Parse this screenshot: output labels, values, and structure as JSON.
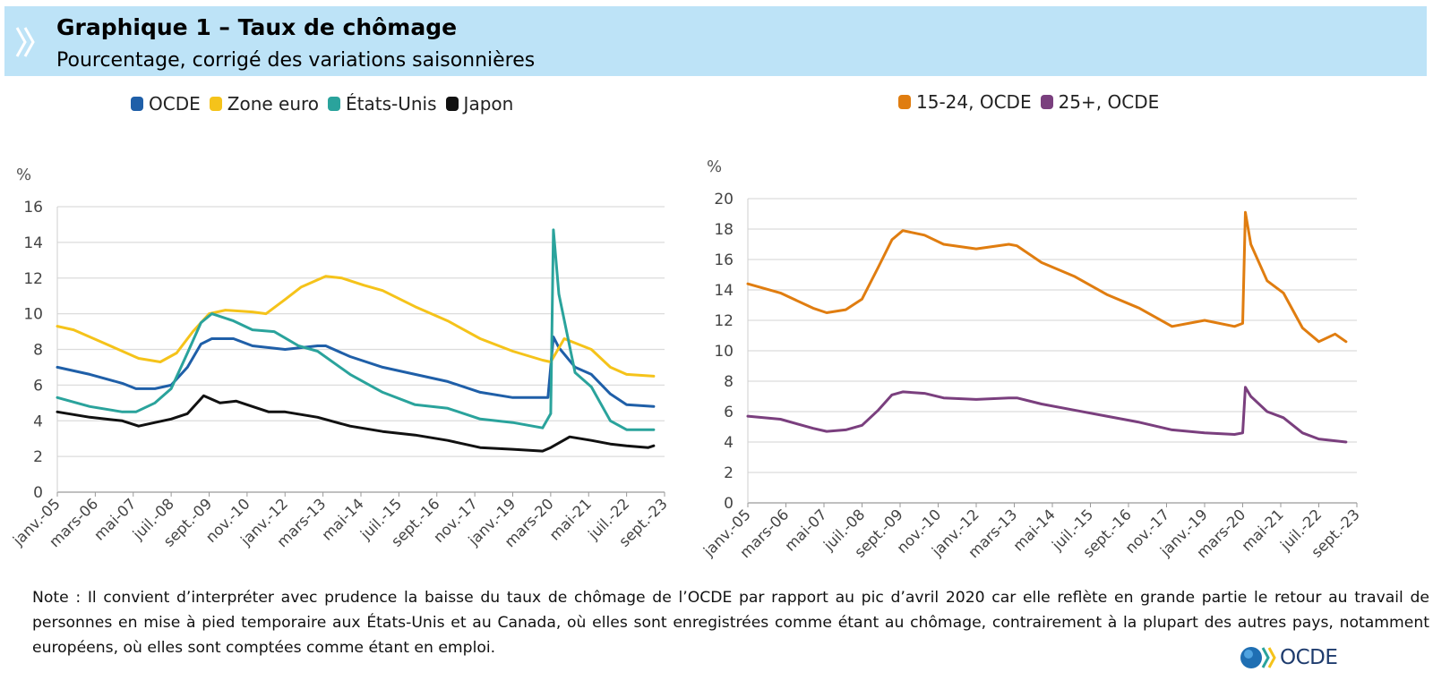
{
  "header": {
    "title": "Graphique 1 – Taux de chômage",
    "subtitle": "Pourcentage, corrigé des variations saisonnières"
  },
  "note": "Note : Il convient d’interpréter avec prudence la baisse du taux de chômage de l’OCDE par rapport au pic d’avril 2020 car elle reflète en grande partie le retour au travail de personnes en mise à pied temporaire aux États-Unis et au Canada, où elles sont enregistrées comme étant au chômage, contrairement à la plupart des autres pays, notamment européens, où elles sont comptées comme étant en emploi.",
  "logo": {
    "text": "OCDE"
  },
  "colors": {
    "oecd": "#1f5fa8",
    "euro": "#f5c31a",
    "us": "#2aa39c",
    "japan": "#111111",
    "youth": "#e07d10",
    "adult": "#7a3f7e",
    "grid": "#d9d9d9",
    "header_bg": "#bde3f7"
  },
  "chart_data": [
    {
      "type": "line",
      "ylabel": "%",
      "ylim": [
        0,
        16
      ],
      "yticks": [
        0,
        2,
        4,
        6,
        8,
        10,
        12,
        14,
        16
      ],
      "xlim": [
        "2005-01",
        "2023-09"
      ],
      "tick_labels": [
        "janv.-05",
        "mars-06",
        "mai-07",
        "juil.-08",
        "sept.-09",
        "nov.-10",
        "janv.-12",
        "mars-13",
        "mai-14",
        "juil.-15",
        "sept.-16",
        "nov.-17",
        "janv.-19",
        "mars-20",
        "mai-21",
        "juil.-22",
        "sept.-23"
      ],
      "tick_dates": [
        "2005-01",
        "2006-03",
        "2007-05",
        "2008-07",
        "2009-09",
        "2010-11",
        "2012-01",
        "2013-03",
        "2014-05",
        "2015-07",
        "2016-09",
        "2017-11",
        "2019-01",
        "2020-03",
        "2021-05",
        "2022-07",
        "2023-09"
      ],
      "grid": true,
      "legend_position": "top",
      "series": [
        {
          "name": "OCDE",
          "color": "#1f5fa8",
          "points": [
            [
              "2005-01",
              7.0
            ],
            [
              "2006-01",
              6.6
            ],
            [
              "2007-01",
              6.1
            ],
            [
              "2007-06",
              5.8
            ],
            [
              "2008-01",
              5.8
            ],
            [
              "2008-07",
              6.0
            ],
            [
              "2009-01",
              7.0
            ],
            [
              "2009-06",
              8.3
            ],
            [
              "2009-10",
              8.6
            ],
            [
              "2010-06",
              8.6
            ],
            [
              "2011-01",
              8.2
            ],
            [
              "2012-01",
              8.0
            ],
            [
              "2013-01",
              8.2
            ],
            [
              "2013-04",
              8.2
            ],
            [
              "2014-01",
              7.6
            ],
            [
              "2015-01",
              7.0
            ],
            [
              "2016-01",
              6.6
            ],
            [
              "2017-01",
              6.2
            ],
            [
              "2018-01",
              5.6
            ],
            [
              "2019-01",
              5.3
            ],
            [
              "2019-12",
              5.3
            ],
            [
              "2020-02",
              5.3
            ],
            [
              "2020-04",
              8.7
            ],
            [
              "2020-06",
              8.1
            ],
            [
              "2020-12",
              7.0
            ],
            [
              "2021-06",
              6.6
            ],
            [
              "2022-01",
              5.5
            ],
            [
              "2022-07",
              4.9
            ],
            [
              "2023-05",
              4.8
            ]
          ]
        },
        {
          "name": "Zone euro",
          "color": "#f5c31a",
          "points": [
            [
              "2005-01",
              9.3
            ],
            [
              "2005-07",
              9.1
            ],
            [
              "2006-07",
              8.3
            ],
            [
              "2007-07",
              7.5
            ],
            [
              "2008-03",
              7.3
            ],
            [
              "2008-09",
              7.8
            ],
            [
              "2009-03",
              9.0
            ],
            [
              "2009-09",
              10.0
            ],
            [
              "2010-03",
              10.2
            ],
            [
              "2011-01",
              10.1
            ],
            [
              "2011-06",
              10.0
            ],
            [
              "2012-01",
              10.8
            ],
            [
              "2012-07",
              11.5
            ],
            [
              "2013-04",
              12.1
            ],
            [
              "2013-10",
              12.0
            ],
            [
              "2014-06",
              11.6
            ],
            [
              "2015-01",
              11.3
            ],
            [
              "2016-01",
              10.4
            ],
            [
              "2017-01",
              9.6
            ],
            [
              "2018-01",
              8.6
            ],
            [
              "2019-01",
              7.9
            ],
            [
              "2019-12",
              7.4
            ],
            [
              "2020-03",
              7.3
            ],
            [
              "2020-08",
              8.6
            ],
            [
              "2021-01",
              8.3
            ],
            [
              "2021-06",
              8.0
            ],
            [
              "2022-01",
              7.0
            ],
            [
              "2022-07",
              6.6
            ],
            [
              "2023-05",
              6.5
            ]
          ]
        },
        {
          "name": "États-Unis",
          "color": "#2aa39c",
          "points": [
            [
              "2005-01",
              5.3
            ],
            [
              "2006-01",
              4.8
            ],
            [
              "2007-01",
              4.5
            ],
            [
              "2007-06",
              4.5
            ],
            [
              "2008-01",
              5.0
            ],
            [
              "2008-07",
              5.8
            ],
            [
              "2009-01",
              7.8
            ],
            [
              "2009-06",
              9.5
            ],
            [
              "2009-10",
              10.0
            ],
            [
              "2010-06",
              9.6
            ],
            [
              "2011-01",
              9.1
            ],
            [
              "2011-09",
              9.0
            ],
            [
              "2012-06",
              8.2
            ],
            [
              "2013-01",
              7.9
            ],
            [
              "2014-01",
              6.6
            ],
            [
              "2015-01",
              5.6
            ],
            [
              "2016-01",
              4.9
            ],
            [
              "2017-01",
              4.7
            ],
            [
              "2018-01",
              4.1
            ],
            [
              "2019-01",
              3.9
            ],
            [
              "2019-12",
              3.6
            ],
            [
              "2020-03",
              4.4
            ],
            [
              "2020-04",
              14.7
            ],
            [
              "2020-06",
              11.1
            ],
            [
              "2020-12",
              6.7
            ],
            [
              "2021-06",
              5.9
            ],
            [
              "2022-01",
              4.0
            ],
            [
              "2022-07",
              3.5
            ],
            [
              "2023-05",
              3.5
            ]
          ]
        },
        {
          "name": "Japon",
          "color": "#111111",
          "points": [
            [
              "2005-01",
              4.5
            ],
            [
              "2006-01",
              4.2
            ],
            [
              "2007-01",
              4.0
            ],
            [
              "2007-07",
              3.7
            ],
            [
              "2008-01",
              3.9
            ],
            [
              "2008-07",
              4.1
            ],
            [
              "2009-01",
              4.4
            ],
            [
              "2009-07",
              5.4
            ],
            [
              "2010-01",
              5.0
            ],
            [
              "2010-07",
              5.1
            ],
            [
              "2011-01",
              4.8
            ],
            [
              "2011-07",
              4.5
            ],
            [
              "2012-01",
              4.5
            ],
            [
              "2013-01",
              4.2
            ],
            [
              "2014-01",
              3.7
            ],
            [
              "2015-01",
              3.4
            ],
            [
              "2016-01",
              3.2
            ],
            [
              "2017-01",
              2.9
            ],
            [
              "2018-01",
              2.5
            ],
            [
              "2019-01",
              2.4
            ],
            [
              "2019-12",
              2.3
            ],
            [
              "2020-03",
              2.5
            ],
            [
              "2020-10",
              3.1
            ],
            [
              "2021-06",
              2.9
            ],
            [
              "2022-01",
              2.7
            ],
            [
              "2022-07",
              2.6
            ],
            [
              "2023-03",
              2.5
            ],
            [
              "2023-05",
              2.6
            ]
          ]
        }
      ]
    },
    {
      "type": "line",
      "ylabel": "%",
      "ylim": [
        0,
        20
      ],
      "yticks": [
        0,
        2,
        4,
        6,
        8,
        10,
        12,
        14,
        16,
        18,
        20
      ],
      "xlim": [
        "2005-01",
        "2023-09"
      ],
      "tick_labels": [
        "janv.-05",
        "mars-06",
        "mai-07",
        "juil.-08",
        "sept.-09",
        "nov.-10",
        "janv.-12",
        "mars-13",
        "mai-14",
        "juil.-15",
        "sept.-16",
        "nov.-17",
        "janv.-19",
        "mars-20",
        "mai-21",
        "juil.-22",
        "sept.-23"
      ],
      "tick_dates": [
        "2005-01",
        "2006-03",
        "2007-05",
        "2008-07",
        "2009-09",
        "2010-11",
        "2012-01",
        "2013-03",
        "2014-05",
        "2015-07",
        "2016-09",
        "2017-11",
        "2019-01",
        "2020-03",
        "2021-05",
        "2022-07",
        "2023-09"
      ],
      "grid": true,
      "legend_position": "top",
      "series": [
        {
          "name": "15-24, OCDE",
          "color": "#e07d10",
          "points": [
            [
              "2005-01",
              14.4
            ],
            [
              "2006-01",
              13.8
            ],
            [
              "2007-01",
              12.8
            ],
            [
              "2007-06",
              12.5
            ],
            [
              "2008-01",
              12.7
            ],
            [
              "2008-07",
              13.4
            ],
            [
              "2009-01",
              15.5
            ],
            [
              "2009-06",
              17.3
            ],
            [
              "2009-10",
              17.9
            ],
            [
              "2010-06",
              17.6
            ],
            [
              "2011-01",
              17.0
            ],
            [
              "2012-01",
              16.7
            ],
            [
              "2013-01",
              17.0
            ],
            [
              "2013-04",
              16.9
            ],
            [
              "2014-01",
              15.8
            ],
            [
              "2015-01",
              14.9
            ],
            [
              "2016-01",
              13.7
            ],
            [
              "2017-01",
              12.8
            ],
            [
              "2018-01",
              11.6
            ],
            [
              "2019-01",
              12.0
            ],
            [
              "2019-12",
              11.6
            ],
            [
              "2020-03",
              11.8
            ],
            [
              "2020-04",
              19.1
            ],
            [
              "2020-06",
              17.0
            ],
            [
              "2020-12",
              14.6
            ],
            [
              "2021-06",
              13.8
            ],
            [
              "2022-01",
              11.5
            ],
            [
              "2022-07",
              10.6
            ],
            [
              "2023-01",
              11.1
            ],
            [
              "2023-05",
              10.6
            ]
          ]
        },
        {
          "name": "25+, OCDE",
          "color": "#7a3f7e",
          "points": [
            [
              "2005-01",
              5.7
            ],
            [
              "2006-01",
              5.5
            ],
            [
              "2007-01",
              4.9
            ],
            [
              "2007-06",
              4.7
            ],
            [
              "2008-01",
              4.8
            ],
            [
              "2008-07",
              5.1
            ],
            [
              "2009-01",
              6.1
            ],
            [
              "2009-06",
              7.1
            ],
            [
              "2009-10",
              7.3
            ],
            [
              "2010-06",
              7.2
            ],
            [
              "2011-01",
              6.9
            ],
            [
              "2012-01",
              6.8
            ],
            [
              "2013-01",
              6.9
            ],
            [
              "2013-04",
              6.9
            ],
            [
              "2014-01",
              6.5
            ],
            [
              "2015-01",
              6.1
            ],
            [
              "2016-01",
              5.7
            ],
            [
              "2017-01",
              5.3
            ],
            [
              "2018-01",
              4.8
            ],
            [
              "2019-01",
              4.6
            ],
            [
              "2019-12",
              4.5
            ],
            [
              "2020-03",
              4.6
            ],
            [
              "2020-04",
              7.6
            ],
            [
              "2020-06",
              7.0
            ],
            [
              "2020-12",
              6.0
            ],
            [
              "2021-06",
              5.6
            ],
            [
              "2022-01",
              4.6
            ],
            [
              "2022-07",
              4.2
            ],
            [
              "2023-05",
              4.0
            ]
          ]
        }
      ]
    }
  ]
}
